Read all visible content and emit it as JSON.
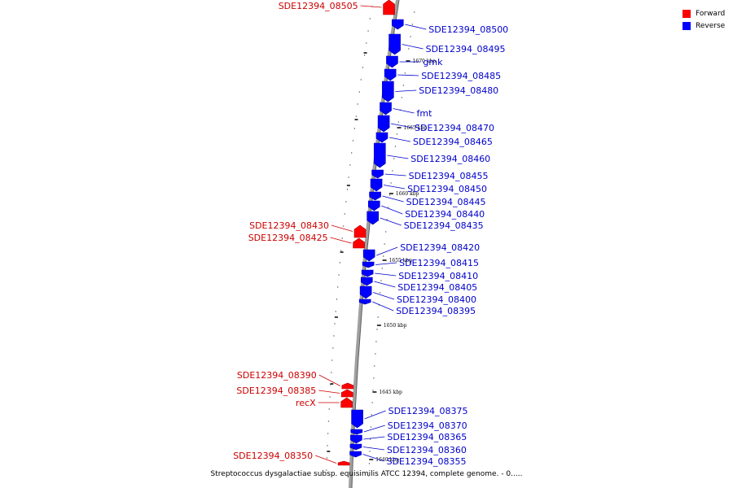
{
  "colors": {
    "forward": "#ff0000",
    "reverse": "#0000ff",
    "backbone": "#a0a0a0",
    "forward_label": "#cc0000",
    "reverse_label": "#0000cc"
  },
  "legend": [
    {
      "label": "Forward",
      "color": "#ff0000"
    },
    {
      "label": "Reverse",
      "color": "#0000ff"
    }
  ],
  "caption": "Streptococcus dysgalactiae subsp. equisimilis ATCC 12394, complete genome. - 0.....",
  "ruler": {
    "unit": "kbp",
    "ticks": [
      {
        "value": 1670,
        "label": "1670 kbp"
      },
      {
        "value": 1665,
        "label": "1665 kbp"
      },
      {
        "value": 1660,
        "label": "1660 kbp"
      },
      {
        "value": 1655,
        "label": "1655 kbp"
      },
      {
        "value": 1650,
        "label": "1650 kbp"
      },
      {
        "value": 1645,
        "label": "1645 kbp"
      },
      {
        "value": 1640,
        "label": "1640 kbp"
      }
    ]
  },
  "genes": [
    {
      "name": "SDE12394_08505",
      "strand": "forward"
    },
    {
      "name": "SDE12394_08500",
      "strand": "reverse"
    },
    {
      "name": "SDE12394_08495",
      "strand": "reverse"
    },
    {
      "name": "gmk",
      "strand": "reverse"
    },
    {
      "name": "SDE12394_08485",
      "strand": "reverse"
    },
    {
      "name": "SDE12394_08480",
      "strand": "reverse"
    },
    {
      "name": "fmt",
      "strand": "reverse"
    },
    {
      "name": "SDE12394_08470",
      "strand": "reverse"
    },
    {
      "name": "SDE12394_08465",
      "strand": "reverse"
    },
    {
      "name": "SDE12394_08460",
      "strand": "reverse"
    },
    {
      "name": "SDE12394_08455",
      "strand": "reverse"
    },
    {
      "name": "SDE12394_08450",
      "strand": "reverse"
    },
    {
      "name": "SDE12394_08445",
      "strand": "reverse"
    },
    {
      "name": "SDE12394_08440",
      "strand": "reverse"
    },
    {
      "name": "SDE12394_08435",
      "strand": "reverse"
    },
    {
      "name": "SDE12394_08430",
      "strand": "forward"
    },
    {
      "name": "SDE12394_08425",
      "strand": "forward"
    },
    {
      "name": "SDE12394_08420",
      "strand": "reverse"
    },
    {
      "name": "SDE12394_08415",
      "strand": "reverse"
    },
    {
      "name": "SDE12394_08410",
      "strand": "reverse"
    },
    {
      "name": "SDE12394_08405",
      "strand": "reverse"
    },
    {
      "name": "SDE12394_08400",
      "strand": "reverse"
    },
    {
      "name": "SDE12394_08395",
      "strand": "reverse"
    },
    {
      "name": "SDE12394_08390",
      "strand": "forward"
    },
    {
      "name": "SDE12394_08385",
      "strand": "forward"
    },
    {
      "name": "recX",
      "strand": "forward"
    },
    {
      "name": "SDE12394_08375",
      "strand": "reverse"
    },
    {
      "name": "SDE12394_08370",
      "strand": "reverse"
    },
    {
      "name": "SDE12394_08365",
      "strand": "reverse"
    },
    {
      "name": "SDE12394_08360",
      "strand": "reverse"
    },
    {
      "name": "SDE12394_08355",
      "strand": "reverse"
    },
    {
      "name": "SDE12394_08350",
      "strand": "forward"
    }
  ]
}
